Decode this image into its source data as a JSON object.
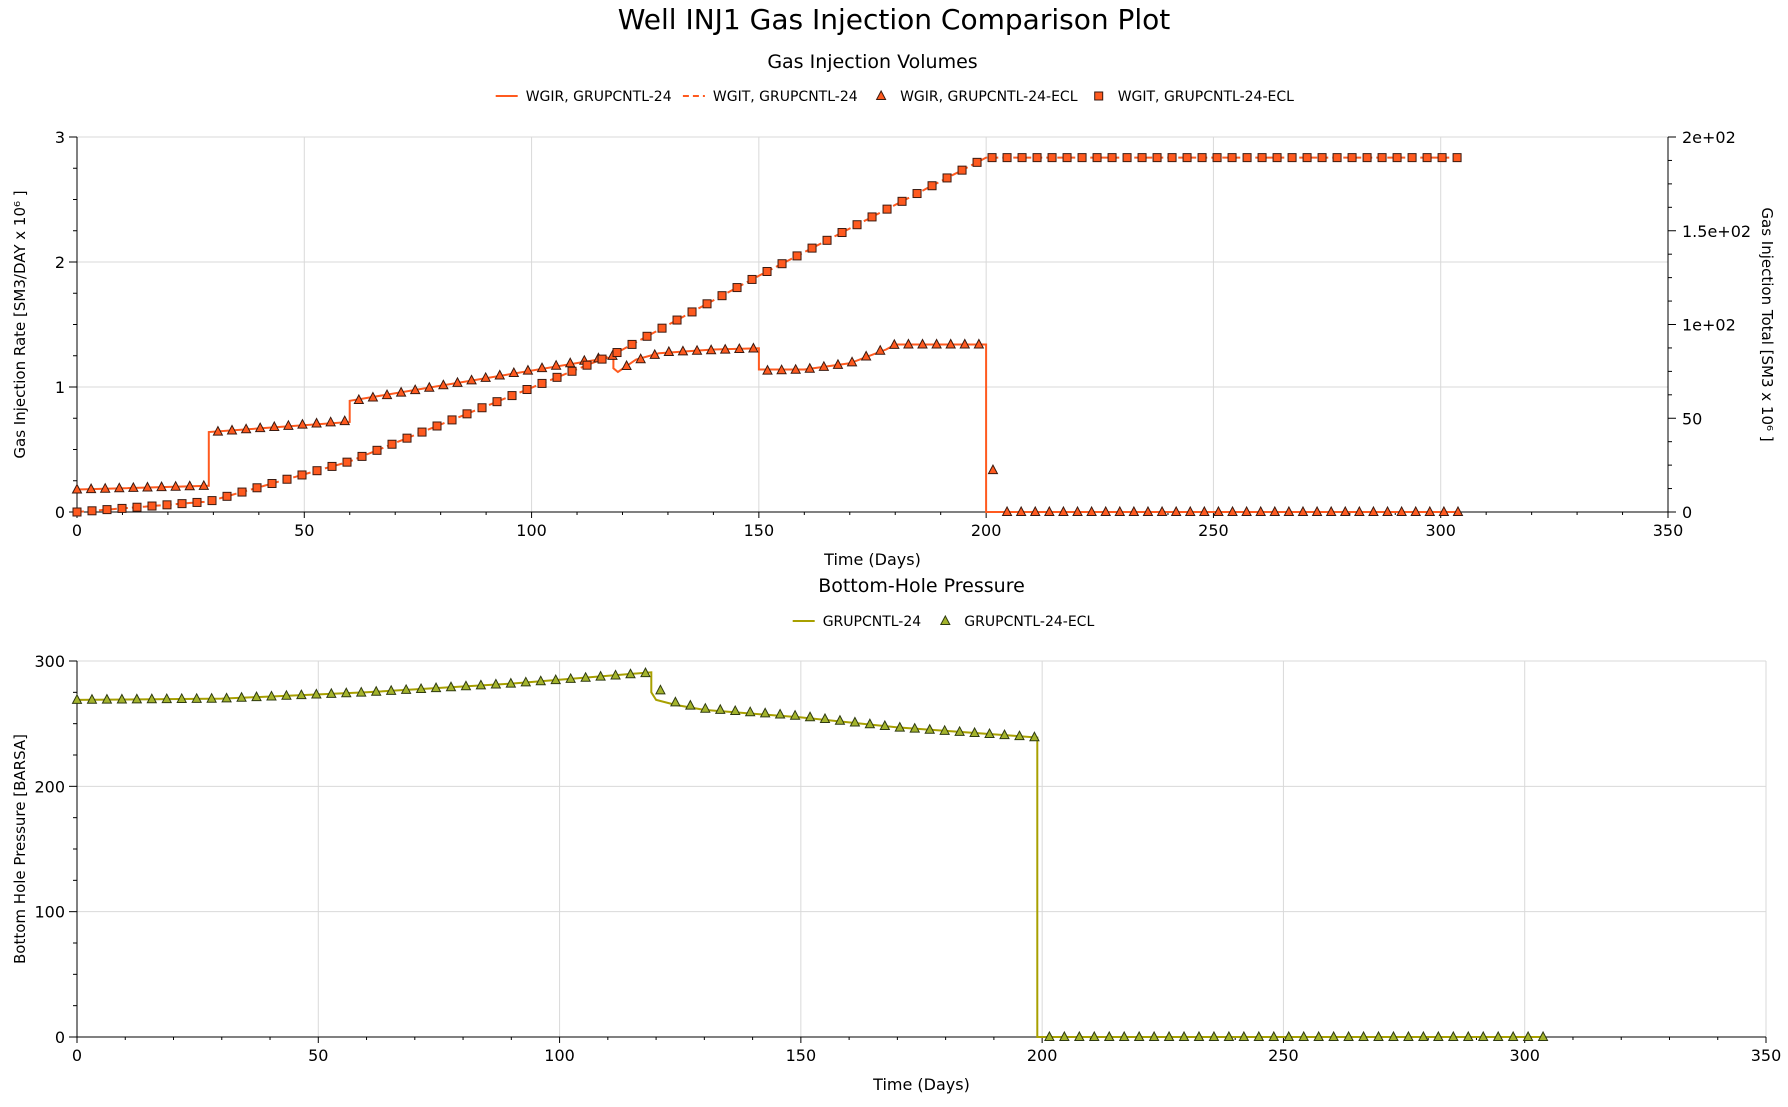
{
  "title": "Well INJ1 Gas Injection Comparison Plot",
  "chart_data": [
    {
      "type": "line",
      "title": "Gas Injection Volumes",
      "xlabel": "Time (Days)",
      "ylabel": "Gas Injection Rate [SM3/DAY x 10⁶ ]",
      "y2label": "Gas Injection Total [SM3 x 10⁶ ]",
      "xlim": [
        0,
        350
      ],
      "ylim": [
        0,
        3
      ],
      "y2lim": [
        0,
        200
      ],
      "xticks": [
        "0",
        "50",
        "100",
        "150",
        "200",
        "250",
        "300",
        "350"
      ],
      "yticks": [
        "0",
        "1",
        "2",
        "3"
      ],
      "y2ticks": [
        "0",
        "50",
        "1e+02",
        "1.5e+02",
        "2e+02"
      ],
      "grid": true,
      "legend_position": "top-center",
      "colors": {
        "line": "#ff5a1f",
        "marker_fill": "#ff5a1f",
        "marker_stroke": "#3a1a10"
      },
      "series": [
        {
          "name": "WGIR, GRUPCNTL-24",
          "axis": "left",
          "style": "step-solid",
          "x": [
            0,
            29,
            29,
            60,
            60,
            118,
            118,
            119,
            123,
            128,
            140,
            150,
            150,
            160,
            170,
            178,
            180,
            200,
            200,
            304
          ],
          "y": [
            0.18,
            0.21,
            0.64,
            0.72,
            0.89,
            1.24,
            1.15,
            1.12,
            1.22,
            1.27,
            1.3,
            1.31,
            1.14,
            1.14,
            1.19,
            1.3,
            1.34,
            1.34,
            0,
            0
          ]
        },
        {
          "name": "WGIT, GRUPCNTL-24",
          "axis": "right",
          "style": "dashed",
          "x": [
            0,
            29,
            60,
            118,
            150,
            200,
            304
          ],
          "y": [
            0,
            5.6,
            27.0,
            84.0,
            126.0,
            189.0,
            189.0
          ]
        },
        {
          "name": "WGIR, GRUPCNTL-24-ECL",
          "axis": "left",
          "style": "triangle-markers",
          "x": [
            0,
            29,
            30,
            60,
            61,
            118,
            119,
            121,
            125,
            130,
            150,
            151,
            160,
            170,
            180,
            200,
            202,
            304
          ],
          "y": [
            0.18,
            0.21,
            0.64,
            0.73,
            0.89,
            1.25,
            1.13,
            1.17,
            1.24,
            1.28,
            1.31,
            1.13,
            1.14,
            1.19,
            1.34,
            1.34,
            0,
            0
          ]
        },
        {
          "name": "WGIT, GRUPCNTL-24-ECL",
          "axis": "right",
          "style": "square-markers",
          "x": [
            0,
            29,
            60,
            118,
            150,
            200,
            304
          ],
          "y": [
            0,
            5.6,
            27.0,
            84.0,
            126.0,
            189.0,
            189.0
          ]
        }
      ]
    },
    {
      "type": "line",
      "title": "Bottom-Hole Pressure",
      "xlabel": "Time (Days)",
      "ylabel": "Bottom Hole Pressure [BARSA]",
      "xlim": [
        0,
        350
      ],
      "ylim": [
        0,
        300
      ],
      "xticks": [
        "0",
        "50",
        "100",
        "150",
        "200",
        "250",
        "300",
        "350"
      ],
      "yticks": [
        "0",
        "100",
        "200",
        "300"
      ],
      "grid": true,
      "legend_position": "top-center",
      "colors": {
        "line": "#a8a000",
        "marker_fill": "#a4b42c",
        "marker_stroke": "#2e3a10"
      },
      "series": [
        {
          "name": "GRUPCNTL-24",
          "style": "step-solid",
          "x": [
            0,
            30,
            60,
            90,
            119,
            119,
            120,
            124,
            130,
            150,
            170,
            199,
            199,
            304
          ],
          "y": [
            269,
            270,
            275,
            282,
            291,
            275,
            269,
            265,
            261,
            255,
            247,
            239,
            0,
            0
          ]
        },
        {
          "name": "GRUPCNTL-24-ECL",
          "style": "triangle-markers",
          "x": [
            0,
            30,
            60,
            90,
            120,
            121,
            124,
            130,
            150,
            170,
            199,
            201,
            304
          ],
          "y": [
            269,
            270,
            275,
            282,
            291,
            275,
            267,
            262,
            256,
            247,
            239,
            0,
            0
          ]
        }
      ]
    }
  ]
}
